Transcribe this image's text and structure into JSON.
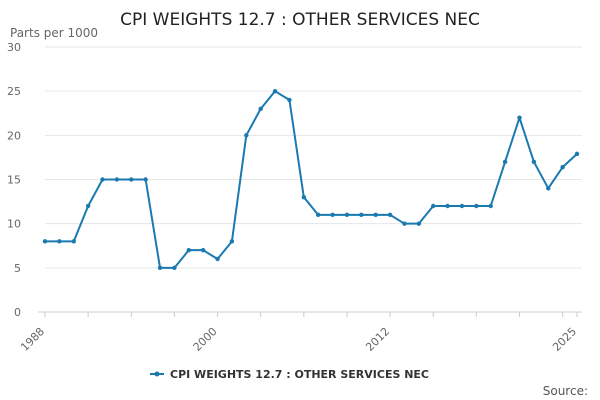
{
  "chart_data": {
    "type": "line",
    "title": "CPI WEIGHTS 12.7 : OTHER SERVICES NEC",
    "ylabel": "Parts per 1000",
    "xlabel": "",
    "ylim": [
      0,
      30
    ],
    "yticks": [
      0,
      5,
      10,
      15,
      20,
      25,
      30
    ],
    "xlim": [
      1988,
      2025
    ],
    "xticks": [
      1988,
      2000,
      2012,
      2025
    ],
    "grid": true,
    "legend": "bottom",
    "source_label": "Source:",
    "colors": {
      "series": "#1a7ab0"
    },
    "series": [
      {
        "name": "CPI WEIGHTS 12.7 : OTHER SERVICES NEC",
        "x": [
          1988,
          1989,
          1990,
          1991,
          1992,
          1993,
          1994,
          1995,
          1996,
          1997,
          1998,
          1999,
          2000,
          2001,
          2002,
          2003,
          2004,
          2005,
          2006,
          2007,
          2008,
          2009,
          2010,
          2011,
          2012,
          2013,
          2014,
          2015,
          2016,
          2017,
          2018,
          2019,
          2020,
          2021,
          2022,
          2023,
          2024,
          2025
        ],
        "values": [
          8,
          8,
          8,
          12,
          15,
          15,
          15,
          15,
          5,
          5,
          7,
          7,
          6,
          8,
          20,
          23,
          25,
          24,
          13,
          11,
          11,
          11,
          11,
          11,
          11,
          10,
          10,
          12,
          12,
          12,
          12,
          12,
          17,
          22,
          17,
          14,
          16.4,
          17.9
        ]
      }
    ]
  }
}
